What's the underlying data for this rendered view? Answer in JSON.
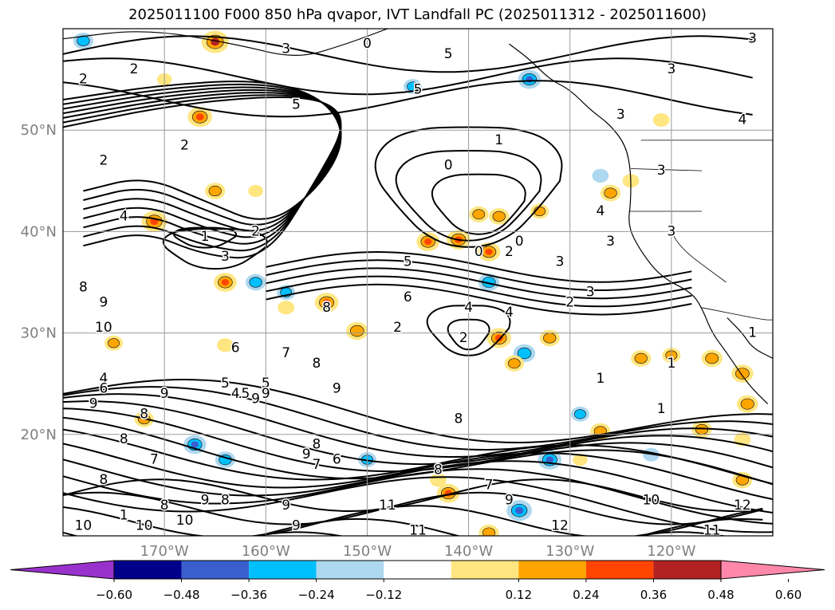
{
  "chart_data": {
    "type": "heatmap",
    "title": "2025011100 F000 850 hPa qvapor, IVT Landfall PC (2025011312 - 2025011600)",
    "x_axis": {
      "unit": "degrees longitude",
      "range": [
        -180,
        -110
      ],
      "ticks": [
        -170,
        -160,
        -150,
        -140,
        -130,
        -120
      ],
      "tick_labels": [
        "170°W",
        "160°W",
        "150°W",
        "140°W",
        "130°W",
        "120°W"
      ]
    },
    "y_axis": {
      "unit": "degrees latitude",
      "range": [
        10,
        60
      ],
      "ticks": [
        20,
        30,
        40,
        50
      ],
      "tick_labels": [
        "20°N",
        "30°N",
        "40°N",
        "50°N"
      ]
    },
    "grid": true,
    "contour_labels": [
      {
        "lon": -178,
        "lat": 55,
        "text": "2"
      },
      {
        "lon": -173,
        "lat": 56,
        "text": "2"
      },
      {
        "lon": -176,
        "lat": 47,
        "text": "2"
      },
      {
        "lon": -174,
        "lat": 41.5,
        "text": "4"
      },
      {
        "lon": -178,
        "lat": 34.5,
        "text": "8"
      },
      {
        "lon": -176,
        "lat": 33,
        "text": "9"
      },
      {
        "lon": -176,
        "lat": 30.5,
        "text": "10"
      },
      {
        "lon": -176,
        "lat": 25.5,
        "text": "4"
      },
      {
        "lon": -176,
        "lat": 24.5,
        "text": "6"
      },
      {
        "lon": -177,
        "lat": 23,
        "text": "9"
      },
      {
        "lon": -178,
        "lat": 11,
        "text": "10"
      },
      {
        "lon": -172,
        "lat": 11,
        "text": "10"
      },
      {
        "lon": -170,
        "lat": 13,
        "text": "8"
      },
      {
        "lon": -164,
        "lat": 37.5,
        "text": "3"
      },
      {
        "lon": -166,
        "lat": 39.5,
        "text": "1"
      },
      {
        "lon": -161,
        "lat": 40,
        "text": "2"
      },
      {
        "lon": -168,
        "lat": 48.5,
        "text": "2"
      },
      {
        "lon": -157,
        "lat": 52.5,
        "text": "5"
      },
      {
        "lon": -150,
        "lat": 58.5,
        "text": "0"
      },
      {
        "lon": -158,
        "lat": 58,
        "text": "3"
      },
      {
        "lon": -145,
        "lat": 54,
        "text": "5"
      },
      {
        "lon": -142,
        "lat": 57.5,
        "text": "5"
      },
      {
        "lon": -137,
        "lat": 49,
        "text": "1"
      },
      {
        "lon": -142,
        "lat": 46.5,
        "text": "0"
      },
      {
        "lon": -139,
        "lat": 38,
        "text": "0"
      },
      {
        "lon": -136,
        "lat": 38,
        "text": "2"
      },
      {
        "lon": -135,
        "lat": 39,
        "text": "0"
      },
      {
        "lon": -131,
        "lat": 37,
        "text": "3"
      },
      {
        "lon": -146,
        "lat": 37,
        "text": "5"
      },
      {
        "lon": -127,
        "lat": 42,
        "text": "4"
      },
      {
        "lon": -126,
        "lat": 39,
        "text": "3"
      },
      {
        "lon": -120,
        "lat": 40,
        "text": "3"
      },
      {
        "lon": -112,
        "lat": 59,
        "text": "3"
      },
      {
        "lon": -120,
        "lat": 56,
        "text": "3"
      },
      {
        "lon": -125,
        "lat": 51.5,
        "text": "3"
      },
      {
        "lon": -113,
        "lat": 51,
        "text": "4"
      },
      {
        "lon": -121,
        "lat": 46,
        "text": "3"
      },
      {
        "lon": -154,
        "lat": 32.5,
        "text": "8"
      },
      {
        "lon": -155,
        "lat": 27,
        "text": "8"
      },
      {
        "lon": -146,
        "lat": 33.5,
        "text": "6"
      },
      {
        "lon": -147,
        "lat": 30.5,
        "text": "2"
      },
      {
        "lon": -140,
        "lat": 32.5,
        "text": "4"
      },
      {
        "lon": -140.5,
        "lat": 29.5,
        "text": "2"
      },
      {
        "lon": -136,
        "lat": 32,
        "text": "4"
      },
      {
        "lon": -130,
        "lat": 33,
        "text": "2"
      },
      {
        "lon": -128,
        "lat": 34,
        "text": "3"
      },
      {
        "lon": -120,
        "lat": 27,
        "text": "1"
      },
      {
        "lon": -121,
        "lat": 22.5,
        "text": "1"
      },
      {
        "lon": -127,
        "lat": 25.5,
        "text": "1"
      },
      {
        "lon": -112,
        "lat": 30,
        "text": "1"
      },
      {
        "lon": -163,
        "lat": 28.5,
        "text": "6"
      },
      {
        "lon": -158,
        "lat": 28,
        "text": "7"
      },
      {
        "lon": -160,
        "lat": 25,
        "text": "5"
      },
      {
        "lon": -164,
        "lat": 25,
        "text": "5"
      },
      {
        "lon": -163,
        "lat": 24,
        "text": "4"
      },
      {
        "lon": -162,
        "lat": 24,
        "text": "5"
      },
      {
        "lon": -160,
        "lat": 24,
        "text": "9"
      },
      {
        "lon": -170,
        "lat": 24,
        "text": "9"
      },
      {
        "lon": -172,
        "lat": 22,
        "text": "8"
      },
      {
        "lon": -174,
        "lat": 19.5,
        "text": "8"
      },
      {
        "lon": -171,
        "lat": 17.5,
        "text": "7"
      },
      {
        "lon": -176,
        "lat": 15.5,
        "text": "8"
      },
      {
        "lon": -174,
        "lat": 12,
        "text": "1"
      },
      {
        "lon": -155,
        "lat": 19,
        "text": "8"
      },
      {
        "lon": -156,
        "lat": 18,
        "text": "9"
      },
      {
        "lon": -155,
        "lat": 17,
        "text": "7"
      },
      {
        "lon": -153,
        "lat": 17.5,
        "text": "6"
      },
      {
        "lon": -153,
        "lat": 24.5,
        "text": "9"
      },
      {
        "lon": -141,
        "lat": 21.5,
        "text": "8"
      },
      {
        "lon": -143,
        "lat": 16.5,
        "text": "8"
      },
      {
        "lon": -138,
        "lat": 15,
        "text": "7"
      },
      {
        "lon": -136,
        "lat": 13.5,
        "text": "9"
      },
      {
        "lon": -148,
        "lat": 13,
        "text": "11"
      },
      {
        "lon": -145,
        "lat": 10.5,
        "text": "11"
      },
      {
        "lon": -131,
        "lat": 11,
        "text": "12"
      },
      {
        "lon": -122,
        "lat": 13.5,
        "text": "10"
      },
      {
        "lon": -113,
        "lat": 13,
        "text": "12"
      },
      {
        "lon": -116,
        "lat": 10.5,
        "text": "11"
      },
      {
        "lon": -164,
        "lat": 13.5,
        "text": "8"
      },
      {
        "lon": -166,
        "lat": 13.5,
        "text": "9"
      },
      {
        "lon": -168,
        "lat": 11.5,
        "text": "10"
      },
      {
        "lon": -158,
        "lat": 13,
        "text": "9"
      },
      {
        "lon": -157,
        "lat": 11,
        "text": "9"
      },
      {
        "lon": -161,
        "lat": 23.5,
        "text": "9"
      }
    ],
    "colorbar": {
      "ticks": [
        -0.6,
        -0.48,
        -0.36,
        -0.24,
        -0.12,
        0.12,
        0.24,
        0.36,
        0.48,
        0.6
      ],
      "tick_labels": [
        "−0.60",
        "−0.48",
        "−0.36",
        "−0.24",
        "−0.12",
        "0.12",
        "0.24",
        "0.36",
        "0.48",
        "0.60"
      ],
      "segments": [
        {
          "from": null,
          "to": -0.6,
          "color": "#9932cc"
        },
        {
          "from": -0.6,
          "to": -0.48,
          "color": "#00008b"
        },
        {
          "from": -0.48,
          "to": -0.36,
          "color": "#3a5fcd"
        },
        {
          "from": -0.36,
          "to": -0.24,
          "color": "#00bfff"
        },
        {
          "from": -0.24,
          "to": -0.12,
          "color": "#add8f0"
        },
        {
          "from": -0.12,
          "to": 0.12,
          "color": "#ffffff"
        },
        {
          "from": 0.12,
          "to": 0.24,
          "color": "#ffe680"
        },
        {
          "from": 0.24,
          "to": 0.36,
          "color": "#ffa500"
        },
        {
          "from": 0.36,
          "to": 0.48,
          "color": "#ff4500"
        },
        {
          "from": 0.48,
          "to": 0.6,
          "color": "#b22222"
        },
        {
          "from": 0.6,
          "to": null,
          "color": "#ff88aa"
        }
      ]
    },
    "shaded_blobs": [
      {
        "lon": -165,
        "lat": 58.7,
        "value": 0.5
      },
      {
        "lon": -166.5,
        "lat": 51.3,
        "value": 0.42
      },
      {
        "lon": -165,
        "lat": 44,
        "value": 0.3
      },
      {
        "lon": -178,
        "lat": 58.8,
        "value": -0.3
      },
      {
        "lon": -171,
        "lat": 41,
        "value": 0.45
      },
      {
        "lon": -161,
        "lat": 44,
        "value": 0.15
      },
      {
        "lon": -170,
        "lat": 55,
        "value": 0.15
      },
      {
        "lon": -164,
        "lat": 35,
        "value": 0.38
      },
      {
        "lon": -158,
        "lat": 34,
        "value": -0.25
      },
      {
        "lon": -158,
        "lat": 32.5,
        "value": 0.2
      },
      {
        "lon": -154,
        "lat": 33,
        "value": 0.4
      },
      {
        "lon": -151,
        "lat": 30.2,
        "value": 0.35
      },
      {
        "lon": -144,
        "lat": 39,
        "value": 0.38
      },
      {
        "lon": -141,
        "lat": 39.2,
        "value": 0.4
      },
      {
        "lon": -137,
        "lat": 41.5,
        "value": 0.3
      },
      {
        "lon": -139,
        "lat": 41.7,
        "value": 0.28
      },
      {
        "lon": -138,
        "lat": 38,
        "value": 0.38
      },
      {
        "lon": -133,
        "lat": 42,
        "value": 0.25
      },
      {
        "lon": -126,
        "lat": 43.8,
        "value": 0.3
      },
      {
        "lon": -138,
        "lat": 35,
        "value": -0.33
      },
      {
        "lon": -137,
        "lat": 29.5,
        "value": 0.42
      },
      {
        "lon": -134.5,
        "lat": 28,
        "value": -0.35
      },
      {
        "lon": -132,
        "lat": 29.5,
        "value": 0.3
      },
      {
        "lon": -135.5,
        "lat": 27,
        "value": 0.28
      },
      {
        "lon": -132,
        "lat": 17.5,
        "value": -0.4
      },
      {
        "lon": -123,
        "lat": 27.5,
        "value": 0.3
      },
      {
        "lon": -120,
        "lat": 27.8,
        "value": 0.25
      },
      {
        "lon": -116,
        "lat": 27.5,
        "value": 0.32
      },
      {
        "lon": -117,
        "lat": 20.5,
        "value": 0.3
      },
      {
        "lon": -113,
        "lat": 26,
        "value": 0.35
      },
      {
        "lon": -112.5,
        "lat": 23,
        "value": 0.33
      },
      {
        "lon": -134,
        "lat": 55,
        "value": -0.38
      },
      {
        "lon": -145.5,
        "lat": 54.3,
        "value": -0.25
      },
      {
        "lon": -175,
        "lat": 29,
        "value": 0.25
      },
      {
        "lon": -164,
        "lat": 28.8,
        "value": 0.2
      },
      {
        "lon": -161,
        "lat": 35,
        "value": -0.3
      },
      {
        "lon": -167,
        "lat": 19,
        "value": -0.38
      },
      {
        "lon": -164,
        "lat": 17.5,
        "value": -0.3
      },
      {
        "lon": -172,
        "lat": 21.5,
        "value": 0.28
      },
      {
        "lon": -127,
        "lat": 20.3,
        "value": 0.3
      },
      {
        "lon": -124,
        "lat": 45,
        "value": 0.2
      },
      {
        "lon": -143,
        "lat": 15.5,
        "value": 0.2
      },
      {
        "lon": -142,
        "lat": 14.2,
        "value": 0.38
      },
      {
        "lon": -138,
        "lat": 10.3,
        "value": 0.3
      },
      {
        "lon": -135,
        "lat": 12.5,
        "value": -0.45
      },
      {
        "lon": -150,
        "lat": 17.5,
        "value": -0.25
      },
      {
        "lon": -129,
        "lat": 22,
        "value": -0.25
      },
      {
        "lon": -113,
        "lat": 15.5,
        "value": 0.3
      },
      {
        "lon": -121,
        "lat": 51,
        "value": 0.2
      },
      {
        "lon": -127,
        "lat": 45.5,
        "value": -0.2
      },
      {
        "lon": -113,
        "lat": 19.5,
        "value": 0.2
      },
      {
        "lon": -129,
        "lat": 17.5,
        "value": 0.15
      },
      {
        "lon": -122,
        "lat": 18,
        "value": -0.2
      }
    ]
  }
}
